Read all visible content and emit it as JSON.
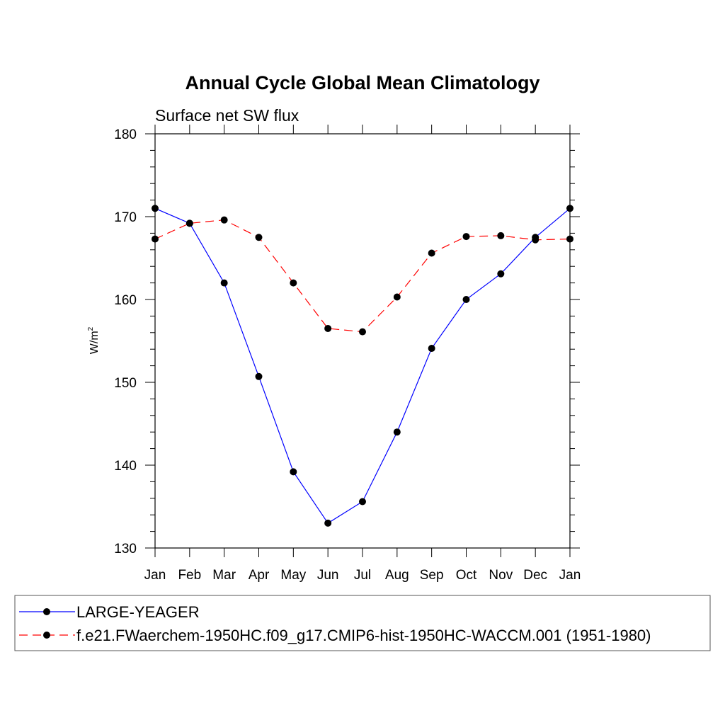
{
  "chart_data": {
    "type": "line",
    "title": "Annual Cycle Global Mean Climatology",
    "subtitle": "Surface net SW flux",
    "ylabel": "W/m",
    "ylabel_superscript": "2",
    "ylim": [
      130,
      180
    ],
    "yticks": [
      130,
      140,
      150,
      160,
      170,
      180
    ],
    "y_minor_step": 2,
    "categories": [
      "Jan",
      "Feb",
      "Mar",
      "Apr",
      "May",
      "Jun",
      "Jul",
      "Aug",
      "Sep",
      "Oct",
      "Nov",
      "Dec",
      "Jan"
    ],
    "grid": false,
    "legend_position": "bottom",
    "series": [
      {
        "name": "LARGE-YEAGER",
        "color": "#0000ff",
        "dash": "solid",
        "marker": "filled-circle",
        "values": [
          171.0,
          169.2,
          162.0,
          150.7,
          139.2,
          133.0,
          135.6,
          144.0,
          154.1,
          160.0,
          163.1,
          167.5,
          171.0
        ]
      },
      {
        "name": "f.e21.FWaerchem-1950HC.f09_g17.CMIP6-hist-1950HC-WACCM.001 (1951-1980)",
        "color": "#ff0000",
        "dash": "dashed",
        "marker": "filled-circle",
        "values": [
          167.3,
          169.2,
          169.6,
          167.5,
          162.0,
          156.5,
          156.1,
          160.3,
          165.6,
          167.6,
          167.7,
          167.2,
          167.3
        ]
      }
    ]
  }
}
